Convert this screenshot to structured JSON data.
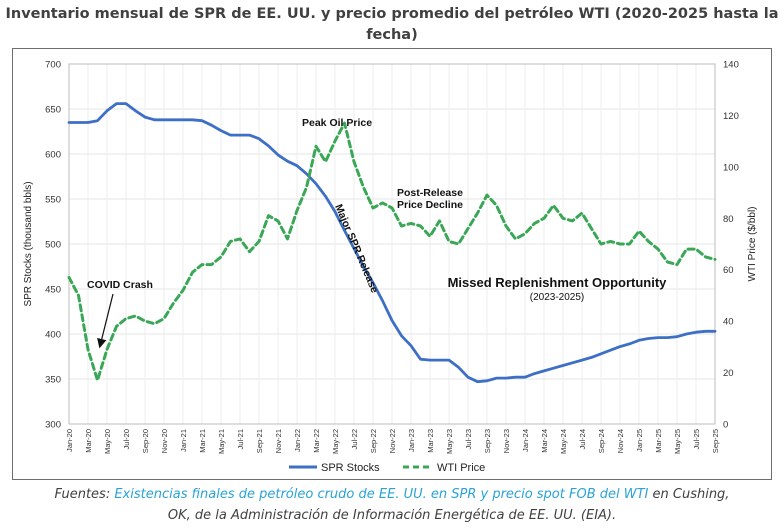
{
  "title": {
    "line1": "Inventario mensual de SPR de EE. UU. y precio promedio del petróleo WTI (2020-2025 hasta la",
    "line2": "fecha)"
  },
  "chart_data": {
    "type": "line",
    "title": "Inventario mensual de SPR de EE. UU. y precio promedio del petróleo WTI (2020-2025 hasta la fecha)",
    "categories": [
      "Jan-20",
      "Feb-20",
      "Mar-20",
      "Apr-20",
      "May-20",
      "Jun-20",
      "Jul-20",
      "Aug-20",
      "Sep-20",
      "Oct-20",
      "Nov-20",
      "Dec-20",
      "Jan-21",
      "Feb-21",
      "Mar-21",
      "Apr-21",
      "May-21",
      "Jun-21",
      "Jul-21",
      "Aug-21",
      "Sep-21",
      "Oct-21",
      "Nov-21",
      "Dec-21",
      "Jan-22",
      "Feb-22",
      "Mar-22",
      "Apr-22",
      "May-22",
      "Jun-22",
      "Jul-22",
      "Aug-22",
      "Sep-22",
      "Oct-22",
      "Nov-22",
      "Dec-22",
      "Jan-23",
      "Feb-23",
      "Mar-23",
      "Apr-23",
      "May-23",
      "Jun-23",
      "Jul-23",
      "Aug-23",
      "Sep-23",
      "Oct-23",
      "Nov-23",
      "Dec-23",
      "Jan-24",
      "Feb-24",
      "Mar-24",
      "Apr-24",
      "May-24",
      "Jun-24",
      "Jul-24",
      "Aug-24",
      "Sep-24",
      "Oct-24",
      "Nov-24",
      "Dec-24",
      "Jan-25",
      "Feb-25",
      "Mar-25",
      "Apr-25",
      "May-25",
      "Jun-25",
      "Jul-25",
      "Aug-25",
      "Sep-25"
    ],
    "tick_labels": [
      "Jan-20",
      "Mar-20",
      "May-20",
      "Jul-20",
      "Sep-20",
      "Nov-20",
      "Jan-21",
      "Mar-21",
      "May-21",
      "Jul-21",
      "Sep-21",
      "Nov-21",
      "Jan-22",
      "Mar-22",
      "May-22",
      "Jul-22",
      "Sep-22",
      "Nov-22",
      "Jan-23",
      "Mar-23",
      "May-23",
      "Jul-23",
      "Sep-23",
      "Nov-23",
      "Jan-24",
      "Mar-24",
      "May-24",
      "Jul-24",
      "Sep-24",
      "Nov-24",
      "Jan-25",
      "Mar-25",
      "May-25",
      "Jul-25",
      "Sep-25"
    ],
    "series": [
      {
        "name": "SPR Stocks",
        "axis": "left",
        "color": "#3d6fc6",
        "style": "solid",
        "values": [
          635,
          635,
          635,
          637,
          648,
          656,
          656,
          648,
          641,
          638,
          638,
          638,
          638,
          638,
          637,
          632,
          626,
          621,
          621,
          621,
          617,
          609,
          599,
          592,
          587,
          578,
          567,
          553,
          536,
          515,
          495,
          475,
          457,
          437,
          415,
          398,
          387,
          372,
          371,
          371,
          371,
          363,
          352,
          347,
          348,
          351,
          351,
          352,
          352,
          356,
          359,
          362,
          365,
          368,
          371,
          374,
          378,
          382,
          386,
          389,
          393,
          395,
          396,
          396,
          397,
          400,
          402,
          403,
          403
        ]
      },
      {
        "name": "WTI Price",
        "axis": "right",
        "color": "#3aa757",
        "style": "dashed",
        "values": [
          57,
          50,
          29,
          17,
          29,
          38,
          41,
          42,
          40,
          39,
          41,
          47,
          52,
          59,
          62,
          62,
          65,
          71,
          72,
          67,
          71,
          81,
          79,
          72,
          83,
          92,
          108,
          102,
          110,
          117,
          102,
          92,
          84,
          86,
          84,
          77,
          78,
          77,
          73,
          79,
          71,
          70,
          76,
          82,
          89,
          85,
          77,
          72,
          74,
          78,
          80,
          85,
          80,
          79,
          82,
          76,
          70,
          71,
          70,
          70,
          75,
          71,
          68,
          63,
          62,
          68,
          68,
          65,
          64
        ]
      }
    ],
    "y_left": {
      "label": "SPR Stocks (thousand bbls)",
      "min": 300,
      "max": 700,
      "ticks": [
        300,
        350,
        400,
        450,
        500,
        550,
        600,
        650,
        700
      ]
    },
    "y_right": {
      "label": "WTI Price ($/bbl)",
      "min": 0,
      "max": 140,
      "ticks": [
        0,
        20,
        40,
        60,
        80,
        100,
        120,
        140
      ]
    },
    "grid": "vertical-and-horizontal",
    "legend": {
      "position": "bottom-center",
      "items": [
        {
          "label": "SPR Stocks",
          "color": "#3d6fc6",
          "style": "solid"
        },
        {
          "label": "WTI Price",
          "color": "#3aa757",
          "style": "dashed"
        }
      ]
    },
    "annotations": [
      {
        "id": "covid",
        "text": "COVID Crash"
      },
      {
        "id": "peak",
        "text": "Peak Oil Price"
      },
      {
        "id": "release",
        "text": "Major SPR Release"
      },
      {
        "id": "post1",
        "text": "Post-Release"
      },
      {
        "id": "post2",
        "text": "Price Decline"
      },
      {
        "id": "missed",
        "text": "Missed Replenishment Opportunity"
      },
      {
        "id": "missed_sub",
        "text": "(2023-2025)"
      }
    ]
  },
  "source": {
    "prefix": "Fuentes: ",
    "link_text": "Existencias finales de petróleo crudo de EE. UU. en SPR y precio spot FOB del WTI",
    "middle": " en Cushing,",
    "line2": "OK, de la Administración de Información Energética de EE. UU. (EIA)."
  }
}
